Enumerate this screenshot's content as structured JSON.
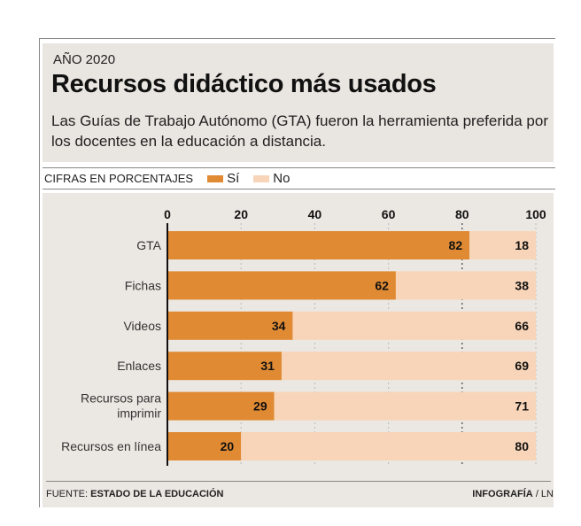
{
  "header": {
    "kicker": "AÑO 2020",
    "title": "Recursos didáctico más usados",
    "subtitle": "Las Guías de Trabajo Autónomo (GTA) fueron la herramienta preferida por los docentes en la educación a distancia."
  },
  "legend": {
    "units": "CIFRAS EN PORCENTAJES",
    "items": [
      {
        "label": "Sí",
        "color": "#e08a33"
      },
      {
        "label": "No",
        "color": "#f8d5b8"
      }
    ]
  },
  "footer": {
    "source_label": "FUENTE:",
    "source_value": "ESTADO DE LA EDUCACIÓN",
    "credit_bold": "INFOGRAFÍA",
    "credit_rest": "/ LN"
  },
  "chart_data": {
    "type": "bar",
    "orientation": "horizontal",
    "stacked": true,
    "title": "Recursos didáctico más usados",
    "xlabel": "",
    "ylabel": "",
    "xlim": [
      0,
      100
    ],
    "x_ticks": [
      0,
      20,
      40,
      60,
      80,
      100
    ],
    "grid": true,
    "legend_position": "top-left",
    "categories": [
      "GTA",
      "Fichas",
      "Videos",
      "Enlaces",
      "Recursos para imprimir",
      "Recursos en línea"
    ],
    "category_lines": [
      [
        "GTA"
      ],
      [
        "Fichas"
      ],
      [
        "Videos"
      ],
      [
        "Enlaces"
      ],
      [
        "Recursos para",
        "imprimir"
      ],
      [
        "Recursos en línea"
      ]
    ],
    "series": [
      {
        "name": "Sí",
        "color": "#e08a33",
        "values": [
          82,
          62,
          34,
          31,
          29,
          20
        ]
      },
      {
        "name": "No",
        "color": "#f8d5b8",
        "values": [
          18,
          38,
          66,
          69,
          71,
          80
        ]
      }
    ]
  }
}
